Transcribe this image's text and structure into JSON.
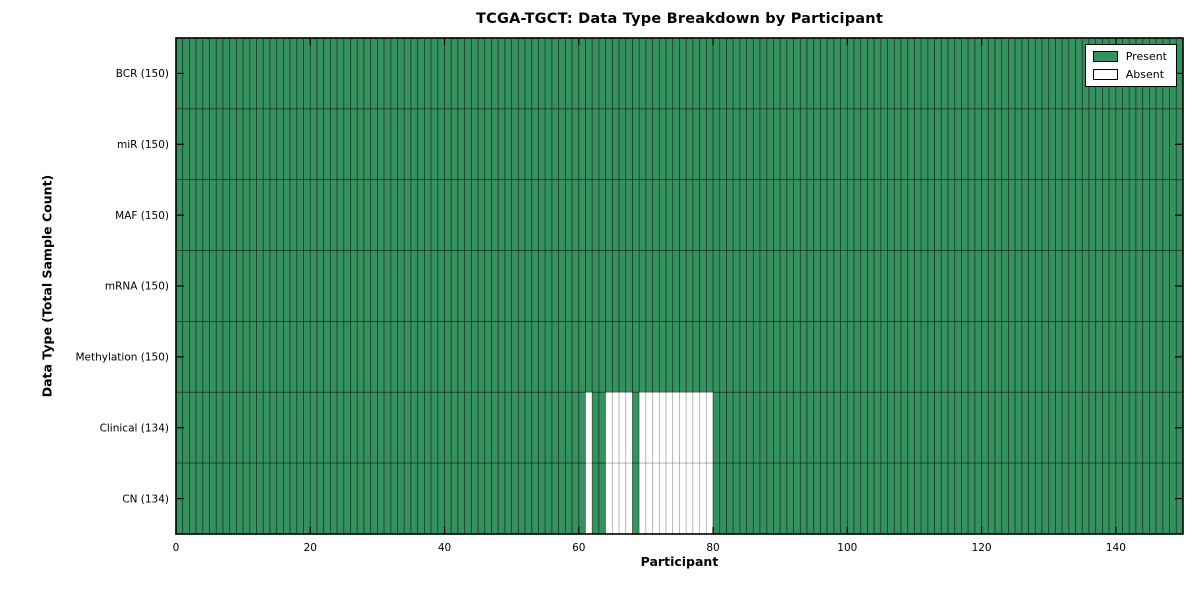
{
  "figure": {
    "background": "#ffffff"
  },
  "chart_data": {
    "type": "heatmap",
    "title": "TCGA-TGCT: Data Type Breakdown by Participant",
    "xlabel": "Participant",
    "ylabel": "Data Type (Total Sample Count)",
    "xlim": [
      0,
      150
    ],
    "n_participants": 150,
    "x_ticks": [
      0,
      20,
      40,
      60,
      80,
      100,
      120,
      140
    ],
    "rows": [
      {
        "label": "BCR (150)",
        "data_type": "BCR",
        "present_count": 150,
        "absent_runs": []
      },
      {
        "label": "miR (150)",
        "data_type": "miR",
        "present_count": 150,
        "absent_runs": []
      },
      {
        "label": "MAF (150)",
        "data_type": "MAF",
        "present_count": 150,
        "absent_runs": []
      },
      {
        "label": "mRNA (150)",
        "data_type": "mRNA",
        "present_count": 150,
        "absent_runs": []
      },
      {
        "label": "Methylation (150)",
        "data_type": "Methylation",
        "present_count": 150,
        "absent_runs": []
      },
      {
        "label": "Clinical (134)",
        "data_type": "Clinical",
        "present_count": 134,
        "absent_runs": [
          [
            61,
            62
          ],
          [
            64,
            68
          ],
          [
            69,
            80
          ]
        ]
      },
      {
        "label": "CN (134)",
        "data_type": "CN",
        "present_count": 134,
        "absent_runs": [
          [
            61,
            62
          ],
          [
            64,
            68
          ],
          [
            69,
            80
          ]
        ]
      }
    ],
    "legend": [
      {
        "label": "Present",
        "color": "#35925e"
      },
      {
        "label": "Absent",
        "color": "#ffffff"
      }
    ],
    "legend_position": "upper right",
    "colors": {
      "present": "#35925e",
      "absent": "#ffffff",
      "cell_border": "#000000",
      "axis": "#000000",
      "text": "#000000"
    },
    "grid": "per-cell borders, inward ticks on all four sides"
  }
}
